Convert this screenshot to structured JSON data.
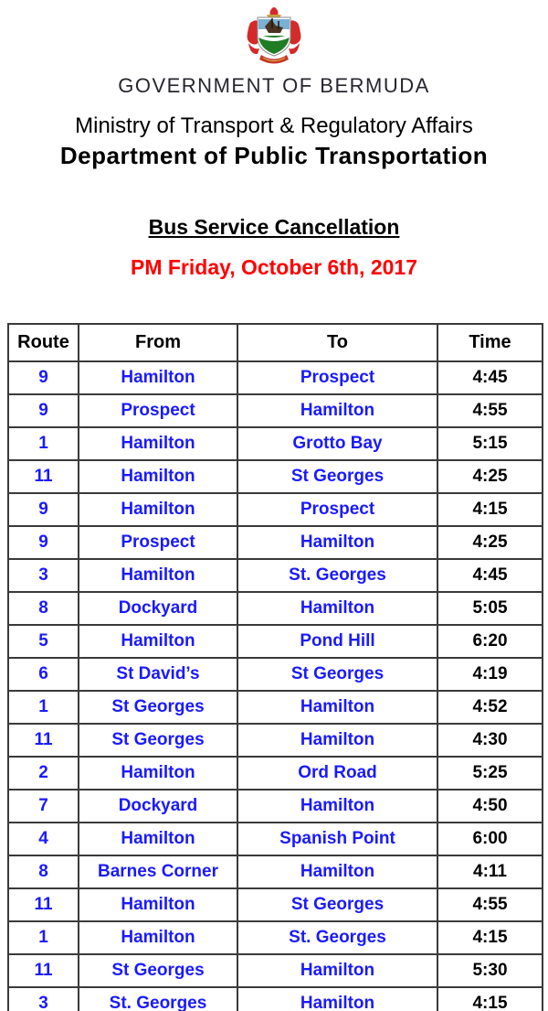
{
  "header": {
    "logo": "bermuda-coat-of-arms",
    "org_name": "GOVERNMENT OF BERMUDA",
    "ministry": "Ministry of Transport & Regulatory Affairs",
    "department": "Department of Public Transportation"
  },
  "notice": {
    "title": "Bus Service Cancellation",
    "date_line": "PM Friday, October 6th, 2017",
    "date_color": "#ff0000"
  },
  "table": {
    "columns": [
      "Route",
      "From",
      "To",
      "Time"
    ],
    "route_text_color": "#1a1aff",
    "time_text_color": "#000000",
    "rows": [
      [
        "9",
        "Hamilton",
        "Prospect",
        "4:45"
      ],
      [
        "9",
        "Prospect",
        "Hamilton",
        "4:55"
      ],
      [
        "1",
        "Hamilton",
        "Grotto Bay",
        "5:15"
      ],
      [
        "11",
        "Hamilton",
        "St Georges",
        "4:25"
      ],
      [
        "9",
        "Hamilton",
        "Prospect",
        "4:15"
      ],
      [
        "9",
        "Prospect",
        "Hamilton",
        "4:25"
      ],
      [
        "3",
        "Hamilton",
        "St. Georges",
        "4:45"
      ],
      [
        "8",
        "Dockyard",
        "Hamilton",
        "5:05"
      ],
      [
        "5",
        "Hamilton",
        "Pond Hill",
        "6:20"
      ],
      [
        "6",
        "St David’s",
        "St Georges",
        "4:19"
      ],
      [
        "1",
        "St Georges",
        "Hamilton",
        "4:52"
      ],
      [
        "11",
        "St Georges",
        "Hamilton",
        "4:30"
      ],
      [
        "2",
        "Hamilton",
        "Ord Road",
        "5:25"
      ],
      [
        "7",
        "Dockyard",
        "Hamilton",
        "4:50"
      ],
      [
        "4",
        "Hamilton",
        "Spanish Point",
        "6:00"
      ],
      [
        "8",
        "Barnes Corner",
        "Hamilton",
        "4:11"
      ],
      [
        "11",
        "Hamilton",
        "St Georges",
        "4:55"
      ],
      [
        "1",
        "Hamilton",
        "St. Georges",
        "4:15"
      ],
      [
        "11",
        "St Georges",
        "Hamilton",
        "5:30"
      ],
      [
        "3",
        "St. Georges",
        "Hamilton",
        "4:15"
      ]
    ]
  }
}
